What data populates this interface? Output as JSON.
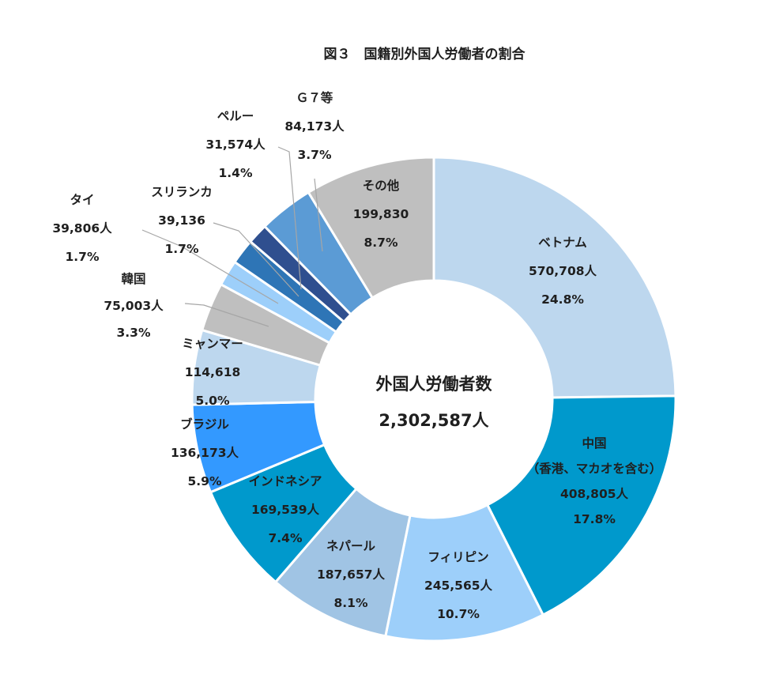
{
  "chart_data": {
    "type": "pie",
    "variant": "donut",
    "title": "図３　国籍別外国人労働者の割合",
    "center_label": "外国人労働者数",
    "center_value": "2,302,587人",
    "slices": [
      {
        "name": "ベトナム",
        "count": "570,708人",
        "percent": "24.8%",
        "value": 570708,
        "color": "#bdd7ee"
      },
      {
        "name": "中国",
        "sub": "（香港、マカオを含む）",
        "count": "408,805人",
        "percent": "17.8%",
        "value": 408805,
        "color": "#0099cc"
      },
      {
        "name": "フィリピン",
        "count": "245,565人",
        "percent": "10.7%",
        "value": 245565,
        "color": "#9dcffa"
      },
      {
        "name": "ネパール",
        "count": "187,657人",
        "percent": "8.1%",
        "value": 187657,
        "color": "#a0c4e4"
      },
      {
        "name": "インドネシア",
        "count": "169,539人",
        "percent": "7.4%",
        "value": 169539,
        "color": "#0099cc"
      },
      {
        "name": "ブラジル",
        "count": "136,173人",
        "percent": "5.9%",
        "value": 136173,
        "color": "#3399ff"
      },
      {
        "name": "ミャンマー",
        "count": "114,618",
        "percent": "5.0%",
        "value": 114618,
        "color": "#bdd7ee"
      },
      {
        "name": "韓国",
        "count": "75,003人",
        "percent": "3.3%",
        "value": 75003,
        "color": "#bfbfbf"
      },
      {
        "name": "タイ",
        "count": "39,806人",
        "percent": "1.7%",
        "value": 39806,
        "color": "#9dcffa"
      },
      {
        "name": "スリランカ",
        "count": "39,136",
        "percent": "1.7%",
        "value": 39136,
        "color": "#2e75b6"
      },
      {
        "name": "ペルー",
        "count": "31,574人",
        "percent": "1.4%",
        "value": 31574,
        "color": "#2f4f8f"
      },
      {
        "name": "Ｇ７等",
        "count": "84,173人",
        "percent": "3.7%",
        "value": 84173,
        "color": "#5b9bd5"
      },
      {
        "name": "その他",
        "count": "199,830",
        "percent": "8.7%",
        "value": 199830,
        "color": "#bfbfbf"
      }
    ]
  }
}
